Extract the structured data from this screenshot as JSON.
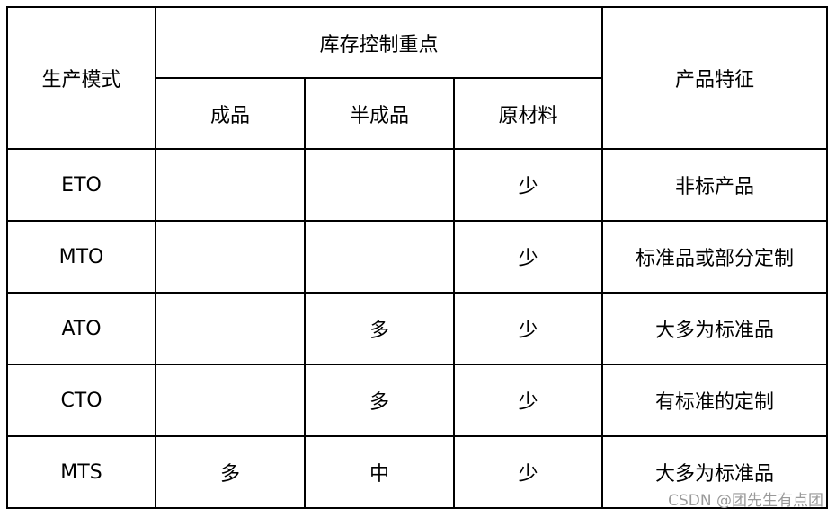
{
  "table": {
    "header": {
      "mode": "生产模式",
      "focus_group": "库存控制重点",
      "finished": "成品",
      "semi": "半成品",
      "raw": "原材料",
      "feature": "产品特征"
    },
    "rows": [
      {
        "mode": "ETO",
        "finished": "",
        "semi": "",
        "raw": "少",
        "feature": "非标产品"
      },
      {
        "mode": "MTO",
        "finished": "",
        "semi": "",
        "raw": "少",
        "feature": "标准品或部分定制"
      },
      {
        "mode": "ATO",
        "finished": "",
        "semi": "多",
        "raw": "少",
        "feature": "大多为标准品"
      },
      {
        "mode": "CTO",
        "finished": "",
        "semi": "多",
        "raw": "少",
        "feature": "有标准的定制"
      },
      {
        "mode": "MTS",
        "finished": "多",
        "semi": "中",
        "raw": "少",
        "feature": "大多为标准品"
      }
    ]
  },
  "watermark": "CSDN @团先生有点团"
}
